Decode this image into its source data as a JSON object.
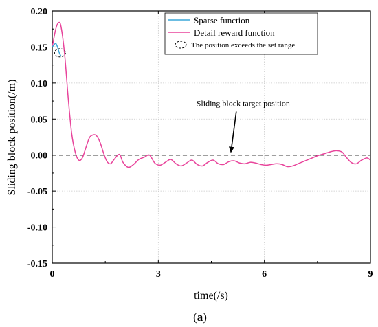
{
  "chart_data": {
    "type": "line",
    "xlabel": "time(/s)",
    "ylabel": "Sliding block position(/m)",
    "xlim": [
      0,
      9
    ],
    "ylim": [
      -0.15,
      0.2
    ],
    "xticks": [
      0,
      3,
      6,
      9
    ],
    "xtick_labels": [
      "0",
      "3",
      "6",
      "9"
    ],
    "yticks": [
      0.2,
      0.15,
      0.1,
      0.05,
      0.0,
      -0.05,
      -0.1,
      -0.15
    ],
    "ytick_labels": [
      "0.20",
      "0.15",
      "0.10",
      "0.05",
      "0.00",
      "-0.05",
      "-0.10",
      "-0.15"
    ],
    "grid": true,
    "legend_position": "top-right",
    "series": [
      {
        "name": "Sparse function",
        "color": "#3aa7d9",
        "x": [
          0,
          0.05,
          0.1,
          0.15,
          0.2,
          0.25
        ],
        "y": [
          0.15,
          0.153,
          0.155,
          0.15,
          0.142,
          0.137
        ]
      },
      {
        "name": "Detail reward function",
        "color": "#e8449b",
        "x": [
          0,
          0.1,
          0.18,
          0.25,
          0.35,
          0.45,
          0.55,
          0.65,
          0.75,
          0.85,
          0.95,
          1.05,
          1.15,
          1.25,
          1.35,
          1.45,
          1.55,
          1.65,
          1.75,
          1.9,
          2.0,
          2.15,
          2.3,
          2.45,
          2.6,
          2.75,
          2.9,
          3.05,
          3.2,
          3.35,
          3.5,
          3.65,
          3.8,
          3.95,
          4.1,
          4.25,
          4.4,
          4.55,
          4.7,
          4.85,
          5.0,
          5.15,
          5.3,
          5.45,
          5.6,
          5.75,
          5.9,
          6.05,
          6.2,
          6.35,
          6.5,
          6.65,
          6.8,
          6.95,
          7.1,
          7.3,
          7.5,
          7.7,
          7.9,
          8.05,
          8.2,
          8.3,
          8.45,
          8.6,
          8.75,
          8.9,
          9.0
        ],
        "y": [
          0.15,
          0.175,
          0.184,
          0.178,
          0.14,
          0.08,
          0.03,
          0.004,
          -0.007,
          -0.004,
          0.01,
          0.024,
          0.028,
          0.027,
          0.018,
          0.003,
          -0.009,
          -0.012,
          -0.006,
          0.001,
          -0.01,
          -0.017,
          -0.013,
          -0.006,
          -0.003,
          0.0,
          -0.011,
          -0.014,
          -0.01,
          -0.006,
          -0.012,
          -0.015,
          -0.011,
          -0.007,
          -0.013,
          -0.015,
          -0.01,
          -0.007,
          -0.012,
          -0.013,
          -0.009,
          -0.008,
          -0.011,
          -0.012,
          -0.01,
          -0.011,
          -0.013,
          -0.014,
          -0.013,
          -0.012,
          -0.013,
          -0.016,
          -0.015,
          -0.012,
          -0.009,
          -0.005,
          -0.001,
          0.002,
          0.005,
          0.006,
          0.004,
          -0.002,
          -0.01,
          -0.012,
          -0.007,
          -0.004,
          -0.007
        ]
      }
    ],
    "reference_line": {
      "y": 0.0,
      "style": "dashed",
      "color": "#000000"
    },
    "annotations": [
      {
        "text": "Sliding block target position",
        "x": 5.4,
        "y": 0.068,
        "arrow_to": {
          "x": 5.05,
          "y": 0.001
        }
      }
    ],
    "exceed_marker": {
      "label": "The position exceeds the set range",
      "x": 0.22,
      "y": 0.142
    },
    "caption": {
      "prefix": "(",
      "bold": "a",
      "suffix": ")"
    }
  }
}
